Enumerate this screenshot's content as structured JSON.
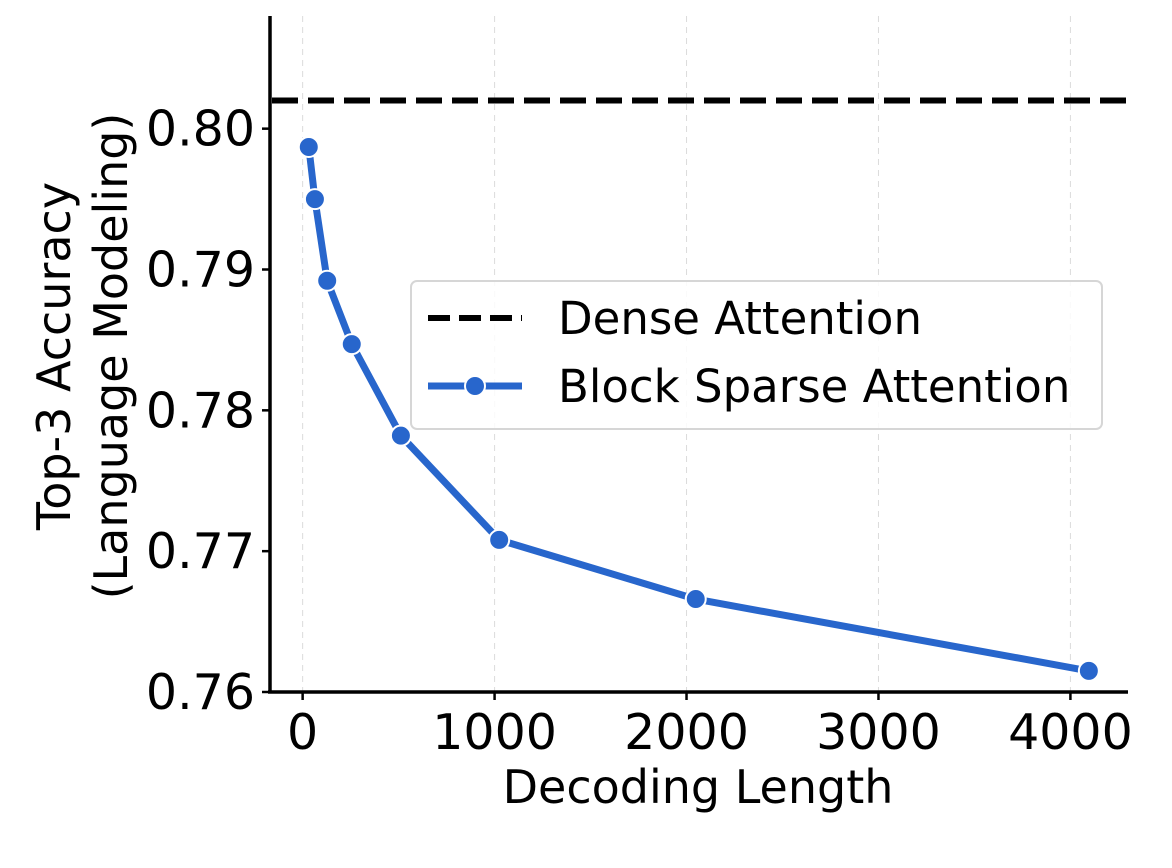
{
  "chart_data": {
    "type": "line",
    "title": "",
    "xlabel": "Decoding Length",
    "ylabel_line1": "Top-3 Accuracy",
    "ylabel_line2": "(Language Modeling)",
    "xlim": [
      -170,
      4300
    ],
    "ylim": [
      0.76,
      0.808
    ],
    "xticks": [
      0,
      1000,
      2000,
      3000,
      4000
    ],
    "xtick_labels": [
      "0",
      "1000",
      "2000",
      "3000",
      "4000"
    ],
    "yticks": [
      0.76,
      0.77,
      0.78,
      0.79,
      0.8
    ],
    "ytick_labels": [
      "0.76",
      "0.77",
      "0.78",
      "0.79",
      "0.80"
    ],
    "grid": "vertical dashed",
    "legend_position": "center-right",
    "series": [
      {
        "name": "Dense Attention",
        "style": "dashed",
        "color": "#000000",
        "constant_y": 0.802
      },
      {
        "name": "Block Sparse Attention",
        "style": "solid-marker",
        "color": "#2866cc",
        "x": [
          32,
          64,
          128,
          256,
          512,
          1024,
          2048,
          4096
        ],
        "y": [
          0.7987,
          0.795,
          0.7892,
          0.7847,
          0.7782,
          0.7708,
          0.7666,
          0.7615
        ]
      }
    ]
  }
}
